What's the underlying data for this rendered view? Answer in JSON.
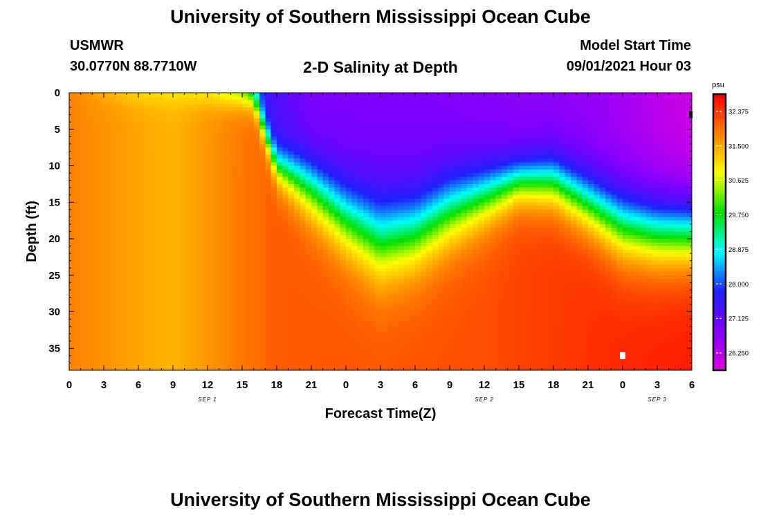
{
  "header": {
    "title": "University of Southern Mississippi Ocean Cube",
    "station": "USMWR",
    "coords": "30.0770N  88.7710W",
    "start_label": "Model Start Time",
    "start_time": "09/01/2021 Hour 03"
  },
  "footer": {
    "title": "University of Southern Mississippi Ocean Cube"
  },
  "chart_data": {
    "type": "heatmap",
    "title": "2-D Salinity at Depth",
    "xlabel": "Forecast Time(Z)",
    "ylabel": "Depth (ft)",
    "x_ticks": [
      "0",
      "3",
      "6",
      "9",
      "12",
      "15",
      "18",
      "21",
      "0",
      "3",
      "6",
      "9",
      "12",
      "15",
      "18",
      "21",
      "0",
      "3",
      "6"
    ],
    "x_range_hours": [
      0,
      54
    ],
    "date_labels": [
      {
        "label": "SEP 1",
        "at_hour": 12
      },
      {
        "label": "SEP 2",
        "at_hour": 36
      },
      {
        "label": "SEP 3",
        "at_hour": 51
      }
    ],
    "y_ticks": [
      0,
      5,
      10,
      15,
      20,
      25,
      30,
      35
    ],
    "y_range": [
      0,
      38
    ],
    "y_inverted": true,
    "colorbar": {
      "unit": "psu",
      "min": 25.812,
      "max": 32.812,
      "tick_labels": [
        "32.375",
        "31.500",
        "30.625",
        "29.750",
        "28.875",
        "28.000",
        "27.125",
        "26.250"
      ]
    },
    "colors": {
      "scale": [
        "#e000e0",
        "#8000ff",
        "#2020ff",
        "#00ffff",
        "#00e000",
        "#ffff00",
        "#ff8000",
        "#ff0000"
      ]
    },
    "surface_salinity_by_hour": [
      {
        "hour": 0,
        "salinity": 31.8
      },
      {
        "hour": 6,
        "salinity": 31.0
      },
      {
        "hour": 12,
        "salinity": 30.8
      },
      {
        "hour": 15,
        "salinity": 29.9
      },
      {
        "hour": 17,
        "salinity": 27.5
      },
      {
        "hour": 21,
        "salinity": 26.8
      },
      {
        "hour": 30,
        "salinity": 26.8
      },
      {
        "hour": 45,
        "salinity": 26.6
      },
      {
        "hour": 51,
        "salinity": 26.2
      },
      {
        "hour": 54,
        "salinity": 26.0
      }
    ],
    "bottom_salinity_by_hour": [
      {
        "hour": 0,
        "salinity": 31.8
      },
      {
        "hour": 9,
        "salinity": 31.4
      },
      {
        "hour": 18,
        "salinity": 32.1
      },
      {
        "hour": 36,
        "salinity": 32.2
      },
      {
        "hour": 48,
        "salinity": 32.5
      },
      {
        "hour": 54,
        "salinity": 32.6
      }
    ],
    "halocline_depth_ft_by_hour": [
      {
        "hour": 16,
        "depth": 1
      },
      {
        "hour": 18,
        "depth": 10
      },
      {
        "hour": 21,
        "depth": 13
      },
      {
        "hour": 24,
        "depth": 17
      },
      {
        "hour": 27,
        "depth": 20
      },
      {
        "hour": 30,
        "depth": 19
      },
      {
        "hour": 33,
        "depth": 16
      },
      {
        "hour": 36,
        "depth": 14
      },
      {
        "hour": 39,
        "depth": 12
      },
      {
        "hour": 42,
        "depth": 12
      },
      {
        "hour": 45,
        "depth": 15
      },
      {
        "hour": 48,
        "depth": 18
      },
      {
        "hour": 51,
        "depth": 19
      },
      {
        "hour": 54,
        "depth": 19
      }
    ],
    "halocline_thickness_ft_by_hour": [
      {
        "hour": 16,
        "thickness": 2
      },
      {
        "hour": 18,
        "thickness": 3
      },
      {
        "hour": 21,
        "thickness": 5
      },
      {
        "hour": 27,
        "thickness": 7
      },
      {
        "hour": 33,
        "thickness": 6
      },
      {
        "hour": 39,
        "thickness": 4
      },
      {
        "hour": 45,
        "thickness": 5
      },
      {
        "hour": 48,
        "thickness": 6
      },
      {
        "hour": 54,
        "thickness": 6
      }
    ]
  }
}
